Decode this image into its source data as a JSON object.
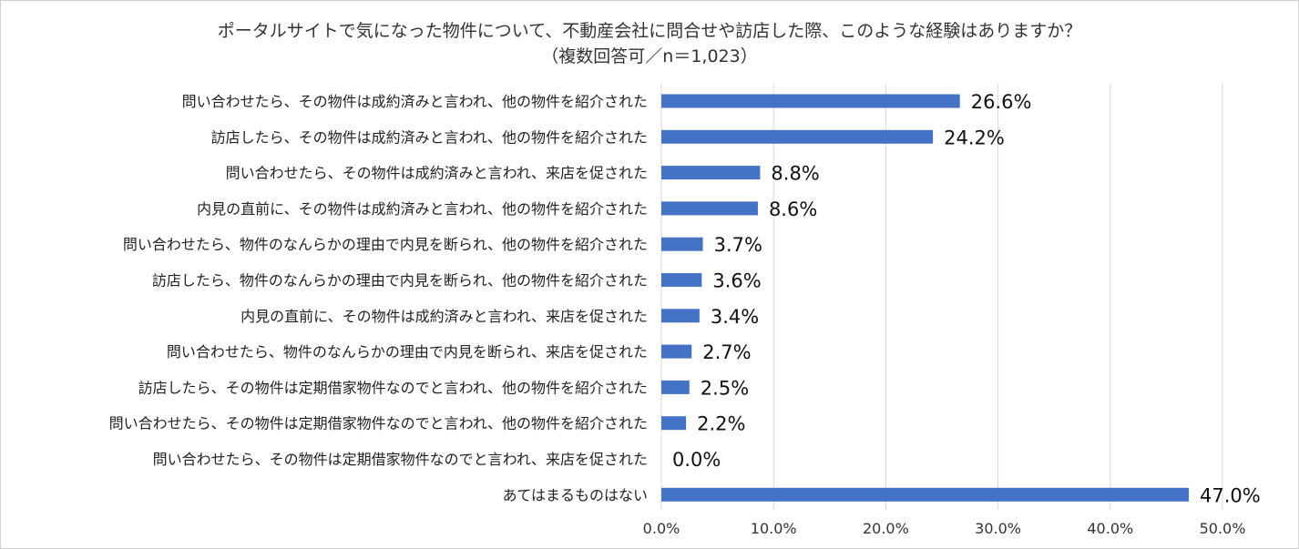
{
  "chart_data": {
    "type": "bar",
    "orientation": "horizontal",
    "title": "ポータルサイトで気になった物件について、不動産会社に問合せや訪店した際、このような経験はありますか？",
    "subtitle": "（複数回答可／n＝1,023）",
    "categories": [
      "問い合わせたら、その物件は成約済みと言われ、他の物件を紹介された",
      "訪店したら、その物件は成約済みと言われ、他の物件を紹介された",
      "問い合わせたら、その物件は成約済みと言われ、来店を促された",
      "内見の直前に、その物件は成約済みと言われ、他の物件を紹介された",
      "問い合わせたら、物件のなんらかの理由で内見を断られ、他の物件を紹介された",
      "訪店したら、物件のなんらかの理由で内見を断られ、他の物件を紹介された",
      "内見の直前に、その物件は成約済みと言われ、来店を促された",
      "問い合わせたら、物件のなんらかの理由で内見を断られ、来店を促された",
      "訪店したら、その物件は定期借家物件なのでと言われ、他の物件を紹介された",
      "問い合わせたら、その物件は定期借家物件なのでと言われ、他の物件を紹介された",
      "問い合わせたら、その物件は定期借家物件なのでと言われ、来店を促された",
      "あてはまるものはない"
    ],
    "values": [
      26.6,
      24.2,
      8.8,
      8.6,
      3.7,
      3.6,
      3.4,
      2.7,
      2.5,
      2.2,
      0.0,
      47.0
    ],
    "value_labels": [
      "26.6%",
      "24.2%",
      "8.8%",
      "8.6%",
      "3.7%",
      "3.6%",
      "3.4%",
      "2.7%",
      "2.5%",
      "2.2%",
      "0.0%",
      "47.0%"
    ],
    "x_ticks": [
      0,
      10,
      20,
      30,
      40,
      50
    ],
    "x_tick_labels": [
      "0.0%",
      "10.0%",
      "20.0%",
      "30.0%",
      "40.0%",
      "50.0%"
    ],
    "xlim": [
      0,
      50
    ],
    "xlabel": "",
    "ylabel": "",
    "grid": true,
    "legend": "none",
    "bar_color": "#4472c4",
    "grid_color": "#d9d9d9"
  }
}
